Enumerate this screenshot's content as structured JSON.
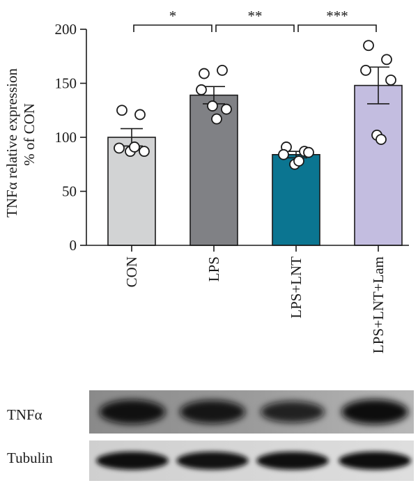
{
  "chart_data": {
    "type": "bar",
    "categories": [
      "CON",
      "LPS",
      "LPS+LNT",
      "LPS+LNT+Lam"
    ],
    "ylabel_line1": "TNFα relative expression",
    "ylabel_line2": "% of CON",
    "ylim": [
      0,
      200
    ],
    "yticks": [
      0,
      50,
      100,
      150,
      200
    ],
    "ytick_labels": [
      "0",
      "50",
      "100",
      "150",
      "200"
    ],
    "grid": false,
    "bars": [
      {
        "category": "CON",
        "mean": 100,
        "sem": 8,
        "color": "#d2d3d4",
        "points": [
          125,
          121,
          90,
          87,
          87,
          91
        ]
      },
      {
        "category": "LPS",
        "mean": 139,
        "sem": 8,
        "color": "#808185",
        "points": [
          159,
          162,
          144,
          126,
          129,
          117
        ]
      },
      {
        "category": "LPS+LNT",
        "mean": 84,
        "sem": 3,
        "color": "#0b7591",
        "points": [
          91,
          87,
          84,
          86,
          75,
          78
        ]
      },
      {
        "category": "LPS+LNT+Lam",
        "mean": 148,
        "sem": 17,
        "color": "#c3bde0",
        "points": [
          185,
          172,
          162,
          153,
          102,
          98
        ]
      }
    ],
    "significance": [
      {
        "from": "CON",
        "to": "LPS",
        "label": "*"
      },
      {
        "from": "LPS",
        "to": "LPS+LNT",
        "label": "**"
      },
      {
        "from": "LPS+LNT",
        "to": "LPS+LNT+Lam",
        "label": "***"
      }
    ]
  },
  "blot": {
    "rows": [
      {
        "label": "TNFα",
        "intensities": [
          0.95,
          0.88,
          0.72,
          1.0
        ]
      },
      {
        "label": "Tubulin",
        "intensities": [
          0.98,
          0.95,
          0.97,
          0.99
        ]
      }
    ]
  }
}
